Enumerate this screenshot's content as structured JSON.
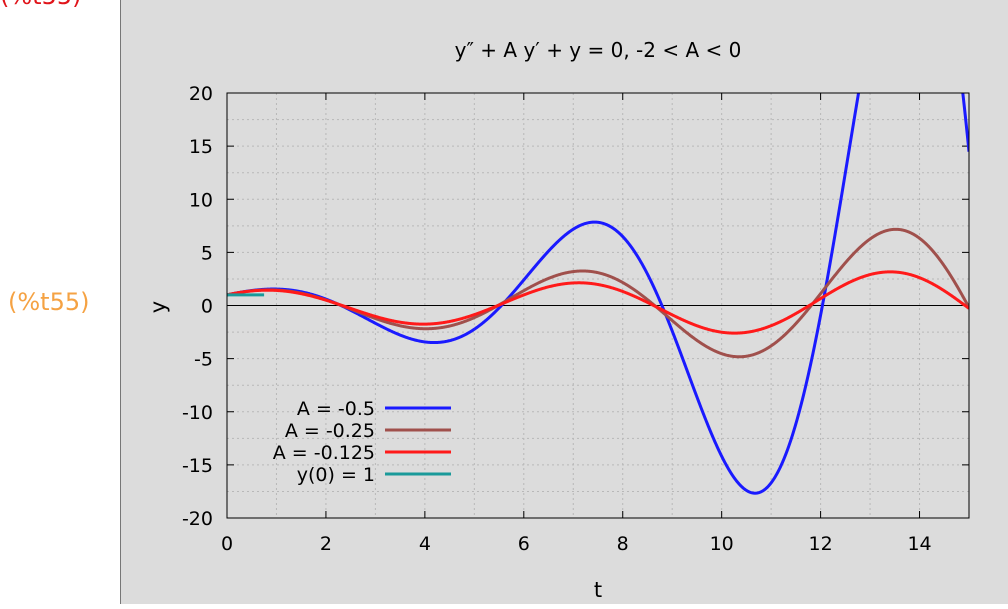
{
  "cell": {
    "label": "(%t55)",
    "label_color": "#f5a243",
    "top_label_color": "#e0141a"
  },
  "plot_bg": "#dcdcdc",
  "chart_data": {
    "type": "line",
    "title": "y″ + A y′ + y = 0,  -2 < A < 0",
    "xlabel": "t",
    "ylabel": "y",
    "xlim": [
      0,
      15
    ],
    "ylim": [
      -20,
      20
    ],
    "xticks": [
      0,
      2,
      4,
      6,
      8,
      10,
      12,
      14
    ],
    "yticks": [
      20,
      15,
      10,
      5,
      0,
      -5,
      -10,
      -15,
      -20
    ],
    "grid": true,
    "legend_position": "bottom-left",
    "series": [
      {
        "name": "A = -0.5",
        "A": -0.5,
        "color": "#1a1aff"
      },
      {
        "name": "A = -0.25",
        "A": -0.25,
        "color": "#a0504c"
      },
      {
        "name": "A = -0.125",
        "A": -0.125,
        "color": "#ff1a1a"
      },
      {
        "name": "y(0) = 1",
        "color": "#1a9a9a",
        "x": [
          0,
          0.75
        ],
        "y": [
          1,
          1
        ]
      }
    ]
  }
}
